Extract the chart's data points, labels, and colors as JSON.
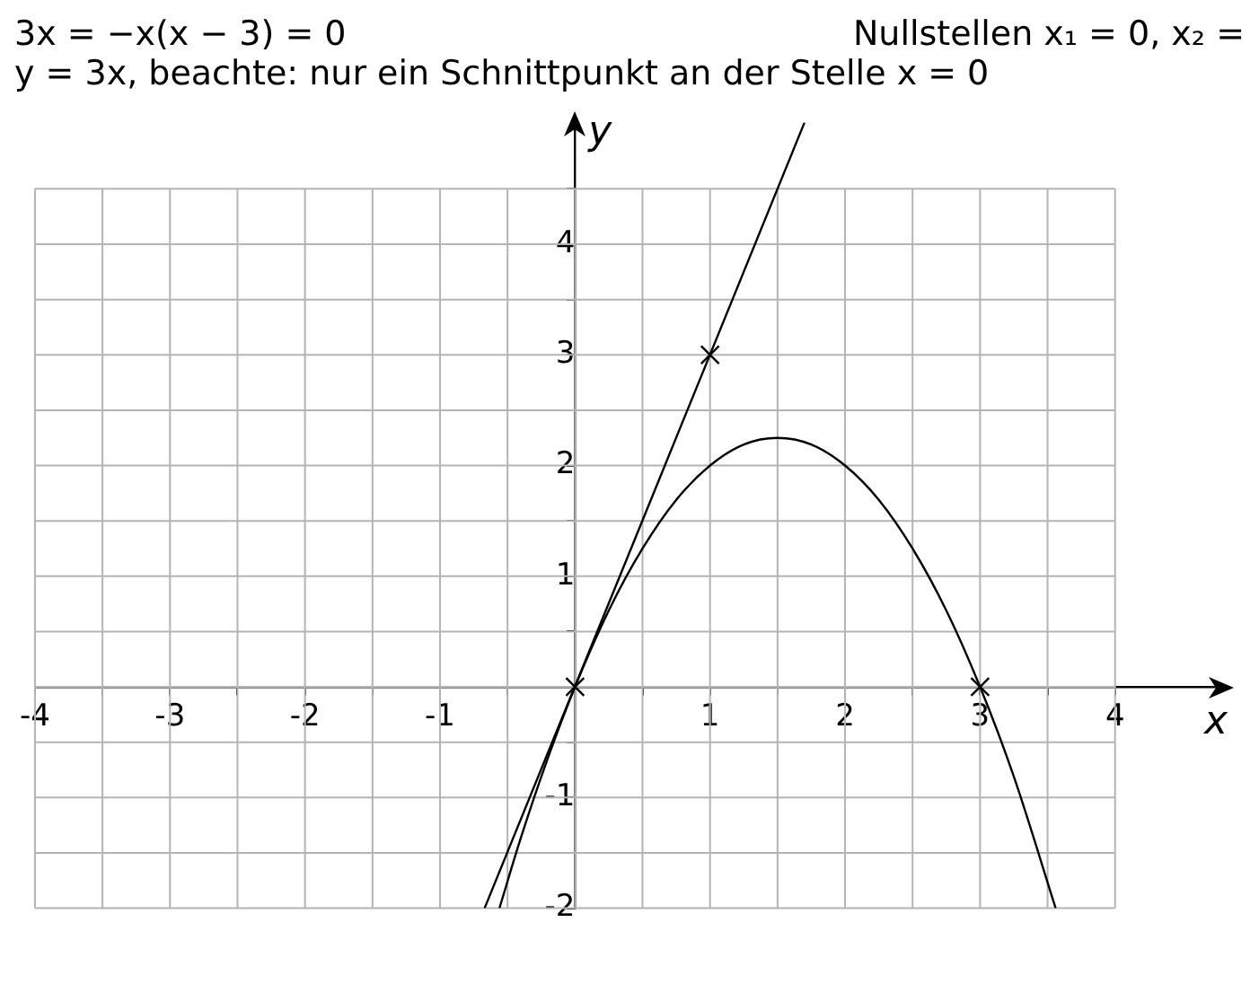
{
  "chart_data": {
    "type": "line",
    "xlabel": "x",
    "ylabel": "y",
    "annotations": [
      "3x = −x(x − 3) = 0",
      "Nullstellen  x₁ = 0, x₂ =",
      "y = 3x, beachte: nur ein Schnittpunkt an der Stelle x = 0"
    ],
    "xlim": [
      -4,
      4.8
    ],
    "ylim": [
      -2,
      5.1
    ],
    "xticks": [
      -4,
      {
        "value": -3.5,
        "label": null
      },
      -3,
      {
        "value": -2.5,
        "label": null
      },
      -2,
      {
        "value": -1.5,
        "label": null
      },
      -1,
      {
        "value": -0.5,
        "label": null
      },
      {
        "value": 0,
        "label": null
      },
      {
        "value": 0.5,
        "label": null
      },
      1,
      {
        "value": 1.5,
        "label": null
      },
      2,
      {
        "value": 2.5,
        "label": null
      },
      3,
      {
        "value": 3.5,
        "label": null
      },
      4
    ],
    "yticks": [
      -2,
      {
        "value": -1.5,
        "label": null
      },
      -1,
      {
        "value": -0.5,
        "label": null
      },
      {
        "value": 0,
        "label": null
      },
      {
        "value": 0.5,
        "label": null
      },
      1,
      {
        "value": 1.5,
        "label": null
      },
      2,
      {
        "value": 2.5,
        "label": null
      },
      3,
      {
        "value": 3.5,
        "label": null
      },
      4,
      {
        "value": 4.5,
        "label": null
      }
    ],
    "grid": true,
    "legend": false,
    "series": [
      {
        "color": "#000000",
        "marker": "none",
        "line_style": "solid",
        "x": [
          -0.56,
          -0.4,
          -0.2,
          0,
          0.25,
          0.5,
          0.75,
          1,
          1.25,
          1.5,
          1.75,
          2,
          2.25,
          2.5,
          2.75,
          3,
          3.25,
          3.56
        ],
        "values": [
          -2,
          -1.36,
          -0.64,
          0,
          0.69,
          1.25,
          1.69,
          2,
          2.19,
          2.25,
          2.19,
          2,
          1.69,
          1.25,
          0.69,
          0,
          -0.81,
          -2
        ]
      },
      {
        "color": "#000000",
        "marker": "none",
        "line_style": "solid",
        "x": [
          -0.67,
          1.7
        ],
        "values": [
          -2,
          5.1
        ]
      },
      {
        "type": "scatter",
        "color": "#000000",
        "marker": "cross",
        "x": [
          0,
          1,
          3
        ],
        "values": [
          0,
          3,
          0
        ]
      }
    ]
  }
}
